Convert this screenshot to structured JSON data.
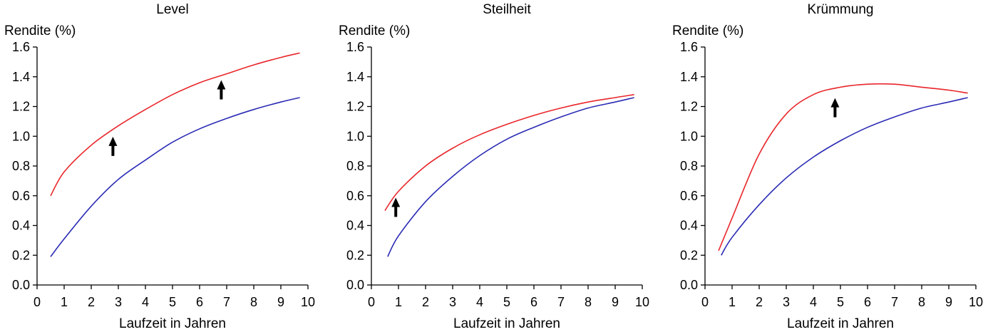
{
  "chart_data": [
    {
      "type": "line",
      "title": "Level",
      "xlabel": "Laufzeit in Jahren",
      "ylabel": "Rendite (%)",
      "xlim": [
        0,
        10
      ],
      "ylim": [
        0.0,
        1.6
      ],
      "xticks": [
        "0",
        "1",
        "2",
        "3",
        "4",
        "5",
        "6",
        "7",
        "8",
        "9",
        "10"
      ],
      "yticks": [
        "0.0",
        "0.2",
        "0.4",
        "0.6",
        "0.8",
        "1.0",
        "1.2",
        "1.4",
        "1.6"
      ],
      "grid": false,
      "series": [
        {
          "color": "#2b2bb5",
          "x": [
            0.5,
            1,
            2,
            3,
            4,
            5,
            6,
            7,
            8,
            9,
            9.7
          ],
          "values": [
            0.19,
            0.31,
            0.53,
            0.71,
            0.84,
            0.96,
            1.05,
            1.12,
            1.18,
            1.23,
            1.26
          ]
        },
        {
          "color": "#e8262b",
          "x": [
            0.5,
            1,
            2,
            3,
            4,
            5,
            6,
            7,
            8,
            9,
            9.7
          ],
          "values": [
            0.6,
            0.76,
            0.94,
            1.07,
            1.18,
            1.28,
            1.36,
            1.42,
            1.48,
            1.53,
            1.56
          ]
        }
      ],
      "arrows": [
        {
          "x": 2.8,
          "y": 0.93
        },
        {
          "x": 6.8,
          "y": 1.31
        }
      ]
    },
    {
      "type": "line",
      "title": "Steilheit",
      "xlabel": "Laufzeit in Jahren",
      "ylabel": "Rendite (%)",
      "xlim": [
        0,
        10
      ],
      "ylim": [
        0.0,
        1.6
      ],
      "xticks": [
        "0",
        "1",
        "2",
        "3",
        "4",
        "5",
        "6",
        "7",
        "8",
        "9",
        "10"
      ],
      "yticks": [
        "0.0",
        "0.2",
        "0.4",
        "0.6",
        "0.8",
        "1.0",
        "1.2",
        "1.4",
        "1.6"
      ],
      "grid": false,
      "series": [
        {
          "color": "#2b2bb5",
          "x": [
            0.6,
            1,
            2,
            3,
            4,
            5,
            6,
            7,
            8,
            9,
            9.7
          ],
          "values": [
            0.19,
            0.33,
            0.56,
            0.73,
            0.87,
            0.98,
            1.06,
            1.13,
            1.19,
            1.23,
            1.26
          ]
        },
        {
          "color": "#e8262b",
          "x": [
            0.5,
            1,
            2,
            3,
            4,
            5,
            6,
            7,
            8,
            9,
            9.7
          ],
          "values": [
            0.5,
            0.63,
            0.8,
            0.92,
            1.01,
            1.08,
            1.14,
            1.19,
            1.23,
            1.26,
            1.28
          ]
        }
      ],
      "arrows": [
        {
          "x": 0.9,
          "y": 0.52
        }
      ]
    },
    {
      "type": "line",
      "title": "Krümmung",
      "xlabel": "Laufzeit in Jahren",
      "ylabel": "Rendite (%)",
      "xlim": [
        0,
        10
      ],
      "ylim": [
        0.0,
        1.6
      ],
      "xticks": [
        "0",
        "1",
        "2",
        "3",
        "4",
        "5",
        "6",
        "7",
        "8",
        "9",
        "10"
      ],
      "yticks": [
        "0.0",
        "0.2",
        "0.4",
        "0.6",
        "0.8",
        "1.0",
        "1.2",
        "1.4",
        "1.6"
      ],
      "grid": false,
      "series": [
        {
          "color": "#2b2bb5",
          "x": [
            0.6,
            1,
            2,
            3,
            4,
            5,
            6,
            7,
            8,
            9,
            9.7
          ],
          "values": [
            0.2,
            0.32,
            0.54,
            0.72,
            0.86,
            0.97,
            1.06,
            1.13,
            1.19,
            1.23,
            1.26
          ]
        },
        {
          "color": "#e8262b",
          "x": [
            0.5,
            1,
            2,
            3,
            4,
            5,
            6,
            7,
            8,
            9,
            9.7
          ],
          "values": [
            0.23,
            0.45,
            0.88,
            1.15,
            1.28,
            1.33,
            1.35,
            1.35,
            1.33,
            1.31,
            1.29
          ]
        }
      ],
      "arrows": [
        {
          "x": 4.8,
          "y": 1.19
        }
      ]
    }
  ]
}
